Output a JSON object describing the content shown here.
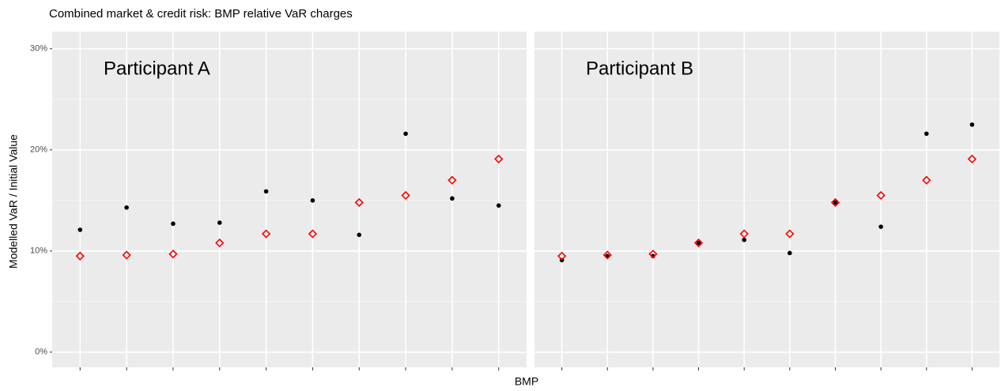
{
  "title": "Combined market & credit risk: BMP relative VaR charges",
  "x_label": "BMP",
  "y_label": "Modelled VaR / Initial Value",
  "chart_data": [
    {
      "type": "scatter",
      "title": "Participant A",
      "categories": [
        null,
        null,
        null,
        null,
        null,
        null,
        null,
        null,
        null,
        null
      ],
      "series": [
        {
          "color": "#000000",
          "marker": "dot",
          "values": [
            12.1,
            14.3,
            12.7,
            12.8,
            15.9,
            15.0,
            11.6,
            21.6,
            15.2,
            14.5
          ]
        },
        {
          "color": "#ff0000",
          "marker": "diamond",
          "values": [
            9.5,
            9.6,
            9.7,
            10.8,
            11.7,
            11.7,
            14.8,
            15.5,
            17.0,
            19.1
          ]
        }
      ],
      "ylim": [
        -1.5,
        31.7
      ],
      "yticks": [
        {
          "value": 0,
          "label": "0%"
        },
        {
          "value": 10,
          "label": "10%"
        },
        {
          "value": 20,
          "label": "20%"
        },
        {
          "value": 30,
          "label": "30%"
        }
      ],
      "grid": true,
      "minor_grid": true
    },
    {
      "type": "scatter",
      "title": "Participant B",
      "categories": [
        null,
        null,
        null,
        null,
        null,
        null,
        null,
        null,
        null,
        null
      ],
      "series": [
        {
          "color": "#000000",
          "marker": "dot",
          "values": [
            9.1,
            9.5,
            9.5,
            10.8,
            11.1,
            9.8,
            14.8,
            12.4,
            21.6,
            22.5
          ]
        },
        {
          "color": "#ff0000",
          "marker": "diamond",
          "values": [
            9.5,
            9.6,
            9.7,
            10.8,
            11.7,
            11.7,
            14.8,
            15.5,
            17.0,
            19.1
          ]
        }
      ],
      "ylim": [
        -1.5,
        31.7
      ],
      "yticks": [
        {
          "value": 0,
          "label": "0%"
        },
        {
          "value": 10,
          "label": "10%"
        },
        {
          "value": 20,
          "label": "20%"
        },
        {
          "value": 30,
          "label": "30%"
        }
      ],
      "grid": true,
      "minor_grid": true
    }
  ]
}
